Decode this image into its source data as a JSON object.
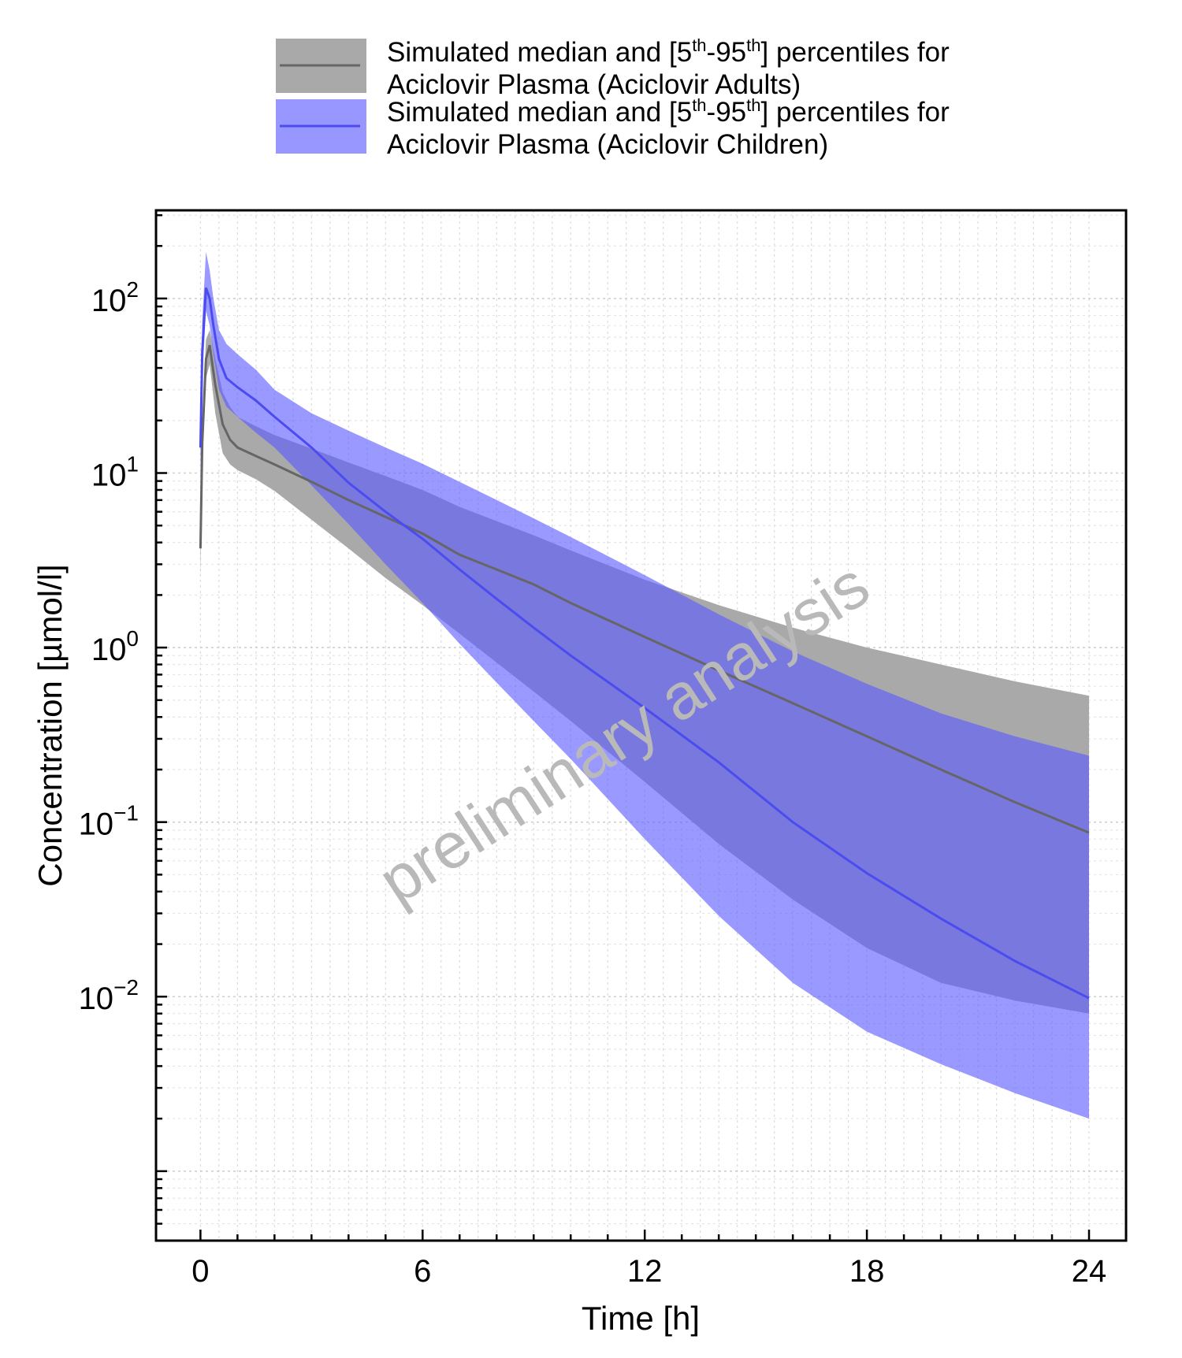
{
  "chart_data": {
    "type": "area",
    "xlabel": "Time [h]",
    "ylabel": "Concentration [µmol/l]",
    "xlim": [
      -1.2,
      25
    ],
    "ylim": [
      0.0004,
      320
    ],
    "yscale": "log",
    "x_ticks": [
      0,
      6,
      12,
      18,
      24
    ],
    "x_tick_labels": [
      "0",
      "6",
      "12",
      "18",
      "24"
    ],
    "y_ticks": [
      {
        "value": 100,
        "base": "10",
        "exp": "2"
      },
      {
        "value": 10,
        "base": "10",
        "exp": "1"
      },
      {
        "value": 1,
        "base": "10",
        "exp": "0"
      },
      {
        "value": 0.1,
        "base": "10",
        "exp": "−1"
      },
      {
        "value": 0.01,
        "base": "10",
        "exp": "−2"
      }
    ],
    "grid": true,
    "legend_position": "top",
    "watermark": "preliminary analysis",
    "legend": [
      {
        "text_line1_pre": "Simulated median and [5",
        "sup1": "th",
        "mid": "-95",
        "sup2": "th",
        "text_line1_post": "] percentiles for",
        "text_line2": "Aciclovir Plasma (Aciclovir Adults)"
      },
      {
        "text_line1_pre": "Simulated median and [5",
        "sup1": "th",
        "mid": "-95",
        "sup2": "th",
        "text_line1_post": "] percentiles for",
        "text_line2": "Aciclovir Plasma (Aciclovir Children)"
      }
    ],
    "series": [
      {
        "name": "Aciclovir Plasma (Aciclovir Adults)",
        "band_color": "#a9a9a9",
        "line_color": "#666666",
        "x": [
          0.0,
          0.05,
          0.15,
          0.25,
          0.4,
          0.6,
          0.8,
          1.0,
          1.5,
          2.0,
          3.0,
          4.0,
          5.0,
          6.0,
          7.0,
          8.0,
          9.0,
          10.0,
          12.0,
          14.0,
          16.0,
          18.0,
          20.0,
          22.0,
          24.0
        ],
        "median": [
          3.7,
          15,
          45,
          54,
          32,
          19,
          15.5,
          14,
          12.5,
          11.2,
          8.9,
          7.0,
          5.6,
          4.5,
          3.4,
          2.8,
          2.3,
          1.8,
          1.15,
          0.74,
          0.48,
          0.31,
          0.2,
          0.13,
          0.087
        ],
        "lower": [
          2.5,
          11,
          35,
          42,
          22,
          13,
          11.2,
          10.4,
          9.2,
          7.9,
          5.4,
          3.7,
          2.5,
          1.75,
          1.2,
          0.82,
          0.56,
          0.38,
          0.17,
          0.075,
          0.036,
          0.019,
          0.012,
          0.0095,
          0.008
        ],
        "upper": [
          5.0,
          21,
          58,
          66,
          45,
          29,
          24,
          21,
          18.5,
          16.5,
          13.8,
          11.5,
          9.6,
          8.0,
          6.4,
          5.3,
          4.4,
          3.6,
          2.45,
          1.75,
          1.3,
          1.0,
          0.8,
          0.64,
          0.53
        ]
      },
      {
        "name": "Aciclovir Plasma (Aciclovir Children)",
        "band_color": "#5a5aff",
        "line_color": "#4b4bf0",
        "x": [
          0.0,
          0.05,
          0.15,
          0.25,
          0.35,
          0.5,
          0.7,
          1.0,
          1.5,
          2.0,
          3.0,
          4.0,
          5.0,
          6.0,
          7.0,
          8.0,
          9.0,
          10.0,
          12.0,
          14.0,
          16.0,
          18.0,
          20.0,
          22.0,
          24.0
        ],
        "median": [
          14,
          50,
          115,
          100,
          70,
          45,
          35,
          31,
          26,
          21,
          14,
          8.8,
          6.0,
          4.2,
          2.8,
          1.9,
          1.3,
          0.9,
          0.45,
          0.22,
          0.1,
          0.051,
          0.028,
          0.016,
          0.0098
        ],
        "lower": [
          9,
          35,
          85,
          70,
          48,
          30,
          24,
          21,
          17,
          14,
          8.5,
          5.1,
          3.0,
          1.8,
          1.05,
          0.63,
          0.38,
          0.23,
          0.08,
          0.029,
          0.012,
          0.0063,
          0.0041,
          0.0028,
          0.002
        ],
        "upper": [
          20,
          75,
          185,
          145,
          100,
          66,
          55,
          48,
          39,
          30,
          22,
          17.5,
          14,
          11.3,
          8.9,
          7.0,
          5.5,
          4.3,
          2.6,
          1.55,
          0.95,
          0.62,
          0.42,
          0.31,
          0.24
        ]
      }
    ]
  }
}
